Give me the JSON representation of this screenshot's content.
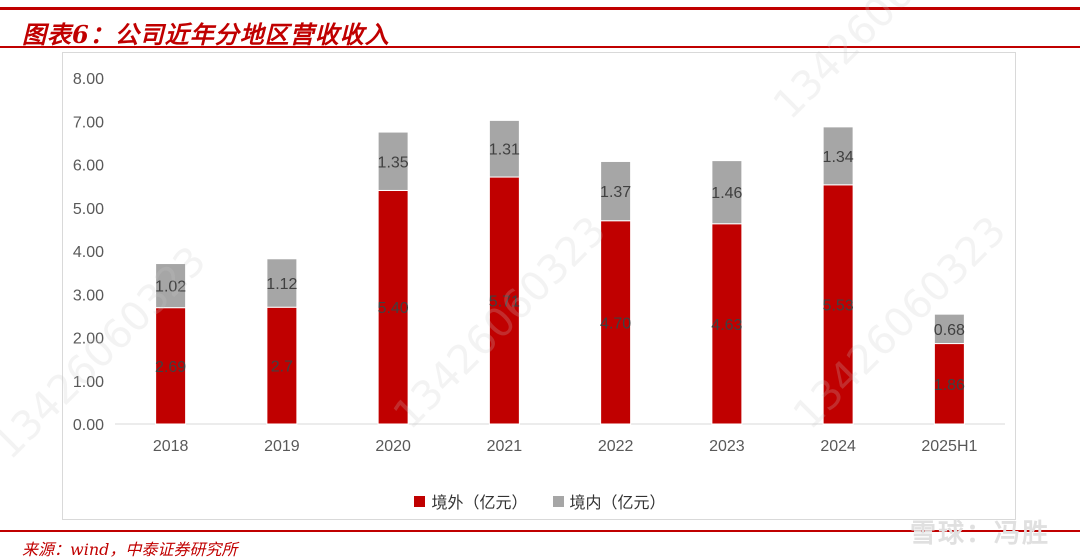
{
  "title": "图表6：公司近年分地区营收收入",
  "source": "来源：wind，中泰证券研究所",
  "logo": "雪球：冯胜",
  "watermark": "13426060323",
  "colors": {
    "domestic_overseas": "#c00000",
    "domestic": "#a6a6a6",
    "accent": "#c00000"
  },
  "chart_data": {
    "type": "bar",
    "stacked": true,
    "categories": [
      "2018",
      "2019",
      "2020",
      "2021",
      "2022",
      "2023",
      "2024",
      "2025H1"
    ],
    "series": [
      {
        "name": "境外（亿元）",
        "values": [
          2.69,
          2.7,
          5.4,
          5.71,
          4.7,
          4.63,
          5.53,
          1.86
        ],
        "labels": [
          "2.69",
          "2.7",
          "5.40",
          "5.71",
          "4.70",
          "4.63",
          "5.53",
          "1.86"
        ]
      },
      {
        "name": "境内（亿元）",
        "values": [
          1.02,
          1.12,
          1.35,
          1.31,
          1.37,
          1.46,
          1.34,
          0.68
        ],
        "labels": [
          "1.02",
          "1.12",
          "1.35",
          "1.31",
          "1.37",
          "1.46",
          "1.34",
          "0.68"
        ]
      }
    ],
    "ylim": [
      0,
      8
    ],
    "yticks": [
      "0.00",
      "1.00",
      "2.00",
      "3.00",
      "4.00",
      "5.00",
      "6.00",
      "7.00",
      "8.00"
    ],
    "legend_position": "bottom",
    "grid": false
  }
}
